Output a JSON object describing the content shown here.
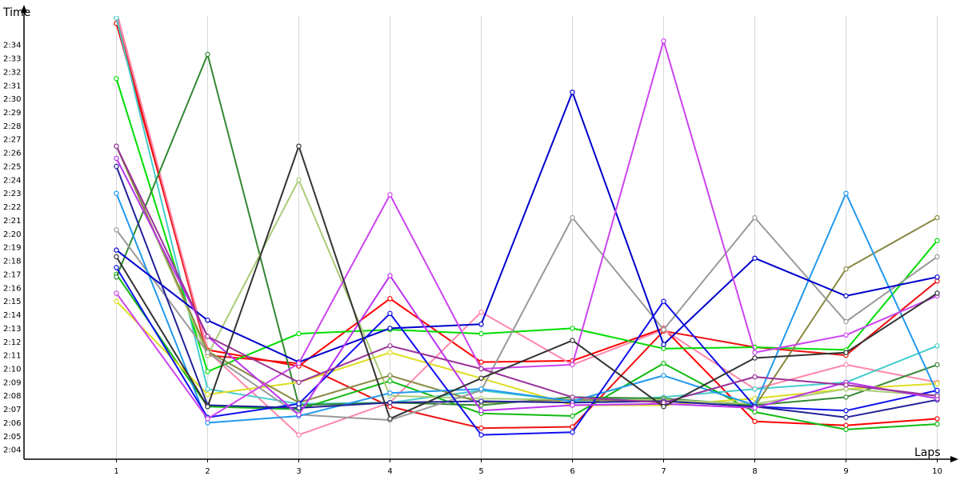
{
  "chart_data": {
    "type": "line",
    "xlabel": "Laps",
    "ylabel": "Time",
    "x": [
      1,
      2,
      3,
      4,
      5,
      6,
      7,
      8,
      9,
      10
    ],
    "ylim_seconds": [
      123.3,
      156.5
    ],
    "y_tick_labels": [
      "2:04",
      "2:05",
      "2:06",
      "2:07",
      "2:08",
      "2:09",
      "2:10",
      "2:11",
      "2:12",
      "2:13",
      "2:14",
      "2:15",
      "2:16",
      "2:17",
      "2:18",
      "2:19",
      "2:20",
      "2:21",
      "2:22",
      "2:23",
      "2:24",
      "2:25",
      "2:26",
      "2:27",
      "2:28",
      "2:29",
      "2:30",
      "2:31",
      "2:32",
      "2:33",
      "2:34"
    ],
    "y_tick_values": [
      124,
      125,
      126,
      127,
      128,
      129,
      130,
      131,
      132,
      133,
      134,
      135,
      136,
      137,
      138,
      139,
      140,
      141,
      142,
      143,
      144,
      145,
      146,
      147,
      148,
      149,
      150,
      151,
      152,
      153,
      154
    ],
    "x_tick_labels": [
      "1",
      "2",
      "3",
      "4",
      "5",
      "6",
      "7",
      "8",
      "9",
      "10"
    ],
    "grid": true,
    "series": [
      {
        "color": "#ff0000",
        "values": [
          155.6,
          131.4,
          130.2,
          135.2,
          130.5,
          130.6,
          133.0,
          126.1,
          125.8,
          126.3
        ]
      },
      {
        "color": "#ee1111",
        "values": [
          156.0,
          131.0,
          130.4,
          127.2,
          125.6,
          125.7,
          132.8,
          131.6,
          131.0,
          136.5
        ]
      },
      {
        "color": "#ff88aa",
        "values": [
          156.5,
          131.3,
          125.1,
          127.5,
          134.2,
          130.3,
          132.9,
          128.5,
          130.3,
          129.0
        ]
      },
      {
        "color": "#44cccc",
        "values": [
          156.0,
          128.5,
          127.4,
          127.5,
          128.4,
          127.6,
          127.9,
          128.5,
          129.0,
          131.7
        ]
      },
      {
        "color": "#00dd00",
        "values": [
          151.5,
          129.8,
          132.6,
          132.9,
          132.6,
          133.0,
          131.5,
          131.6,
          131.4,
          139.5
        ]
      },
      {
        "color": "#11bb11",
        "values": [
          137.0,
          127.2,
          127.0,
          129.1,
          126.7,
          126.5,
          130.4,
          126.8,
          125.5,
          125.9
        ]
      },
      {
        "color": "#338833",
        "values": [
          136.8,
          153.3,
          127.3,
          127.5,
          127.3,
          127.9,
          127.8,
          127.3,
          127.9,
          130.3
        ]
      },
      {
        "color": "#dddd22",
        "values": [
          135.0,
          128.1,
          129.0,
          131.2,
          129.3,
          127.3,
          127.3,
          127.8,
          128.5,
          128.9
        ]
      },
      {
        "color": "#aacc77",
        "values": [
          146.5,
          131.0,
          144.0,
          128.0,
          127.8,
          127.7,
          127.7,
          127.4,
          128.5,
          128.0
        ]
      },
      {
        "color": "#888844",
        "values": [
          146.5,
          131.3,
          127.5,
          129.5,
          127.5,
          127.7,
          127.6,
          127.2,
          137.4,
          141.2
        ]
      },
      {
        "color": "#999999",
        "values": [
          140.3,
          131.2,
          126.6,
          126.2,
          128.4,
          141.2,
          132.9,
          141.2,
          133.5,
          138.3
        ]
      },
      {
        "color": "#2299ee",
        "values": [
          143.0,
          126.0,
          126.5,
          128.2,
          128.5,
          127.6,
          129.5,
          127.3,
          143.0,
          128.2
        ]
      },
      {
        "color": "#0000cc",
        "values": [
          138.8,
          133.6,
          130.5,
          133.0,
          133.3,
          150.5,
          131.8,
          138.2,
          135.4,
          136.8
        ]
      },
      {
        "color": "#1111ee",
        "values": [
          137.5,
          126.4,
          127.4,
          134.1,
          125.1,
          125.3,
          135.0,
          127.2,
          126.9,
          128.4
        ]
      },
      {
        "color": "#222299",
        "values": [
          145.0,
          127.3,
          127.1,
          127.5,
          127.6,
          127.5,
          127.6,
          127.2,
          126.4,
          127.7
        ]
      },
      {
        "color": "#bb33ee",
        "values": [
          145.6,
          132.4,
          126.6,
          136.9,
          126.9,
          127.3,
          127.4,
          127.1,
          129.0,
          127.8
        ]
      },
      {
        "color": "#cc44ee",
        "values": [
          135.6,
          126.3,
          130.4,
          142.9,
          130.0,
          130.3,
          154.3,
          131.2,
          132.5,
          135.4
        ]
      },
      {
        "color": "#993399",
        "values": [
          146.5,
          132.4,
          129.0,
          131.7,
          130.0,
          127.9,
          127.5,
          129.4,
          128.8,
          128.0
        ]
      },
      {
        "color": "#333333",
        "values": [
          138.3,
          127.2,
          146.5,
          126.3,
          129.3,
          132.1,
          127.2,
          130.8,
          131.2,
          135.6
        ]
      }
    ]
  }
}
